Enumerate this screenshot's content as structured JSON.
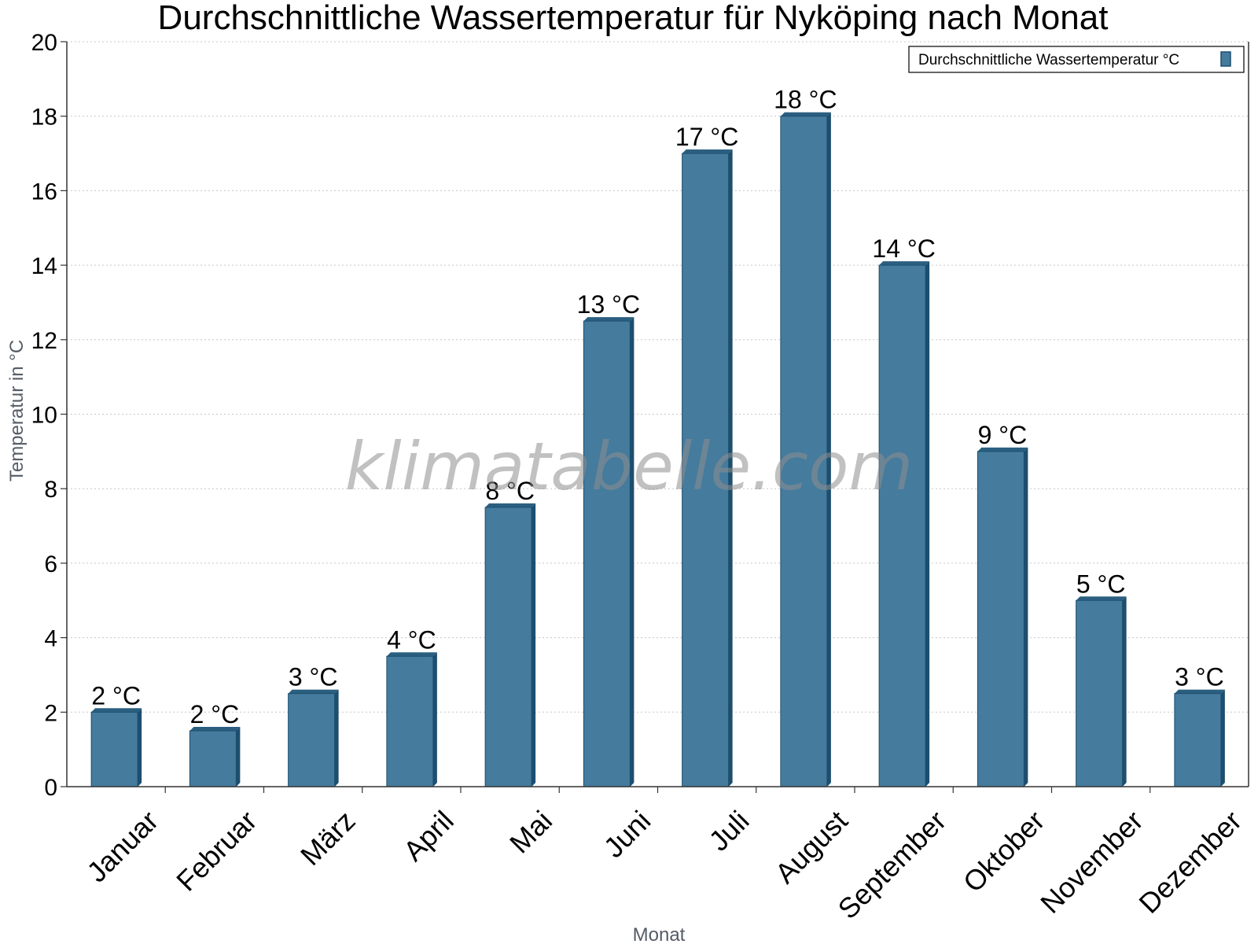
{
  "chart_data": {
    "type": "bar",
    "title": "Durchschnittliche Wassertemperatur für Nyköping nach Monat",
    "xlabel": "Monat",
    "ylabel": "Temperatur in °C",
    "ylim": [
      0,
      20
    ],
    "y_ticks": [
      0,
      2,
      4,
      6,
      8,
      10,
      12,
      14,
      16,
      18,
      20
    ],
    "grid": true,
    "legend_position": "top-right",
    "categories": [
      "Januar",
      "Februar",
      "März",
      "April",
      "Mai",
      "Juni",
      "Juli",
      "August",
      "September",
      "Oktober",
      "November",
      "Dezember"
    ],
    "series": [
      {
        "name": "Durchschnittliche Wassertemperatur °C",
        "values": [
          2.0,
          1.5,
          2.5,
          3.5,
          7.5,
          12.5,
          17.0,
          18.0,
          14.0,
          9.0,
          5.0,
          2.5
        ],
        "data_labels": [
          "2 °C",
          "2 °C",
          "3 °C",
          "4 °C",
          "8 °C",
          "13 °C",
          "17 °C",
          "18 °C",
          "14 °C",
          "9 °C",
          "5 °C",
          "3 °C"
        ],
        "color": "#457b9d"
      }
    ]
  },
  "watermark": "klimatabelle.com",
  "colors": {
    "bar_front": "#457b9d",
    "bar_side": "#1d4e6e",
    "bar_top": "#2b5f80",
    "grid": "#c8c8c8",
    "axis": "#333333"
  }
}
